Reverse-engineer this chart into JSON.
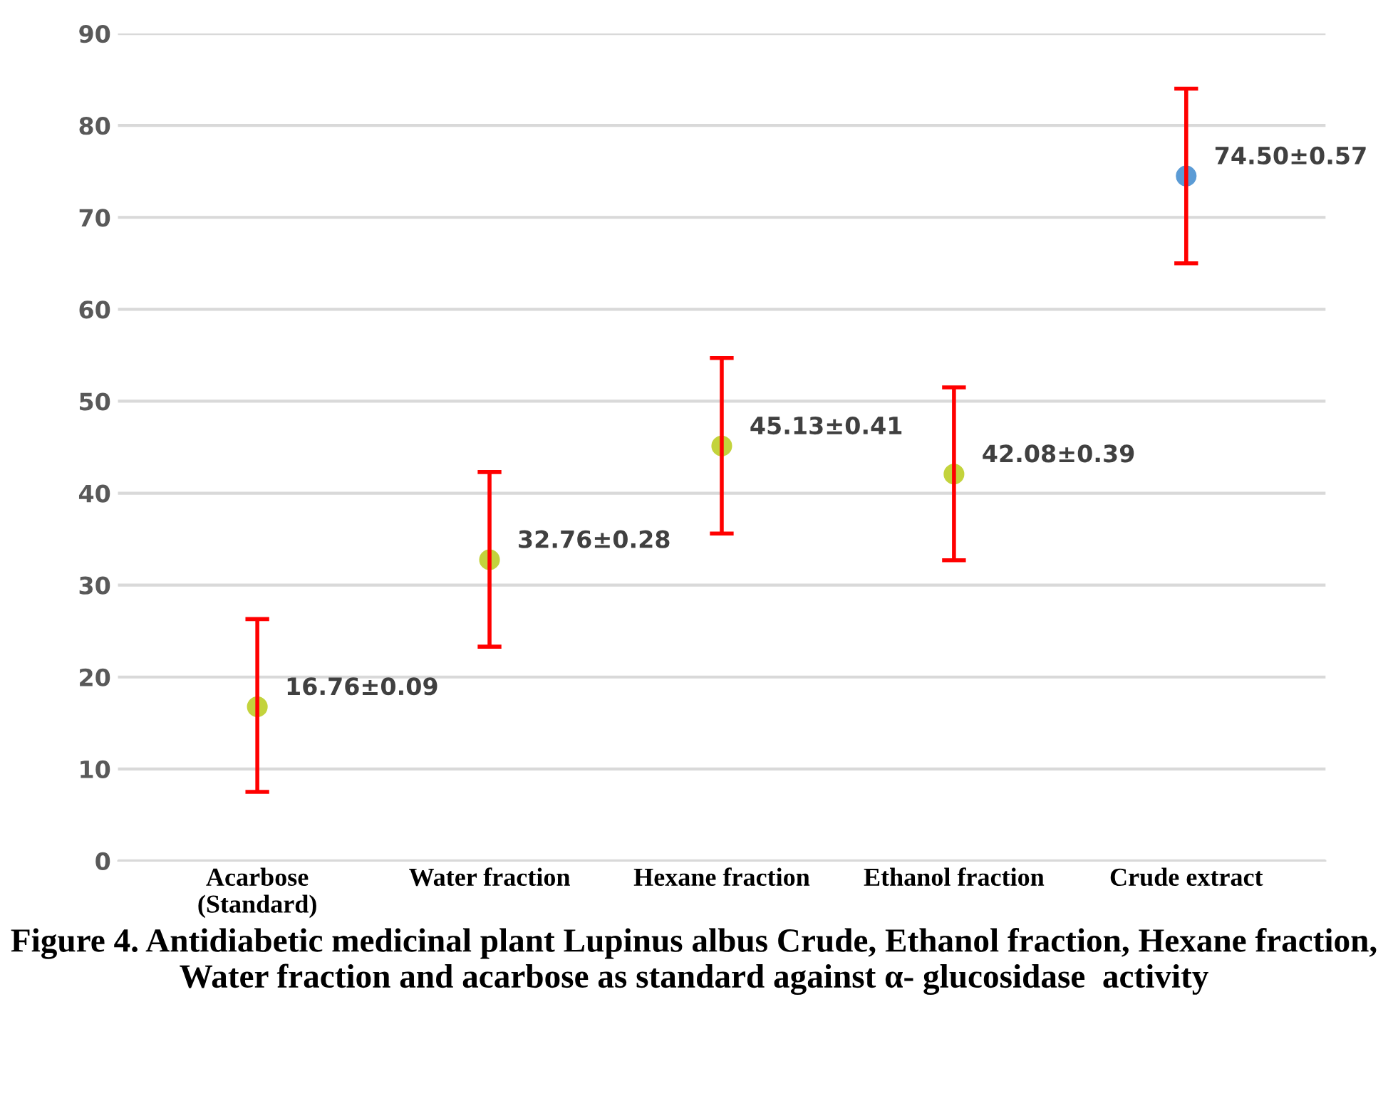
{
  "chart_data": {
    "type": "scatter",
    "title": "Figure 4. Antidiabetic medicinal plant Lupinus albus Crude, Ethanol fraction, Hexane fraction, Water fraction and acarbose as standard against α- glucosidase  activity",
    "categories": [
      "Acarbose\n(Standard)",
      "Water fraction",
      "Hexane fraction",
      "Ethanol fraction",
      "Crude extract"
    ],
    "values": [
      16.76,
      32.76,
      45.13,
      42.08,
      74.5
    ],
    "colors": [
      "#c3d33c",
      "#c3d33c",
      "#c3d33c",
      "#c3d33c",
      "#5b9bd5"
    ],
    "errors": [
      [
        7.5,
        26.3
      ],
      [
        23.3,
        42.3
      ],
      [
        35.6,
        54.7
      ],
      [
        32.7,
        51.5
      ],
      [
        65,
        84
      ]
    ],
    "value_labels": [
      "16.76±0.09",
      "32.76±0.28",
      "45.13±0.41",
      "42.08±0.39",
      "74.50±0.57"
    ],
    "ylim": [
      0,
      90
    ],
    "yticks": [
      0,
      10,
      20,
      30,
      40,
      50,
      60,
      70,
      80,
      90
    ],
    "grid": "y",
    "marker": "circle",
    "legend": false
  }
}
